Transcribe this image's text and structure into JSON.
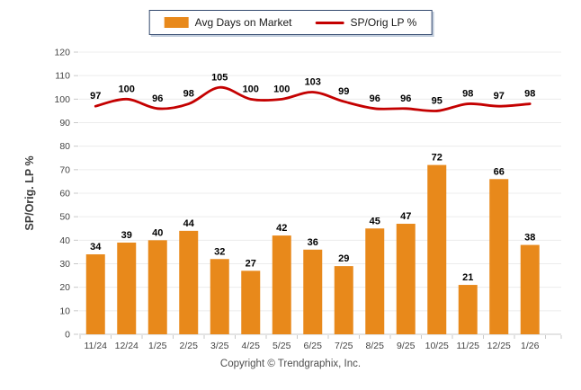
{
  "legend": {
    "border_color": "#33496E",
    "items": [
      {
        "label": "Avg Days on Market",
        "swatch": "bar-swatch-icon",
        "color": "#E8891B"
      },
      {
        "label": "SP/Orig LP %",
        "swatch": "line-swatch-icon",
        "color": "#C40000"
      }
    ]
  },
  "footer": "Copyright © Trendgraphix, Inc.",
  "chart_data": {
    "type": "combo",
    "categories": [
      "11/24",
      "12/24",
      "1/25",
      "2/25",
      "3/25",
      "4/25",
      "5/25",
      "6/25",
      "7/25",
      "8/25",
      "9/25",
      "10/25",
      "11/25",
      "12/25",
      "1/26"
    ],
    "series": [
      {
        "name": "Avg Days on Market",
        "type": "bar",
        "color": "#E8891B",
        "values": [
          34,
          39,
          40,
          44,
          32,
          27,
          42,
          36,
          29,
          45,
          47,
          72,
          21,
          66,
          38
        ]
      },
      {
        "name": "SP/Orig LP %",
        "type": "line",
        "color": "#C40000",
        "values": [
          97,
          100,
          96,
          98,
          105,
          100,
          100,
          103,
          99,
          96,
          96,
          95,
          98,
          97,
          98
        ]
      }
    ],
    "title": "",
    "xlabel": "",
    "ylabel": "SP/Orig. LP %",
    "ylim": [
      0,
      120
    ],
    "ytick_step": 10,
    "grid": true,
    "legend_position": "top",
    "colors": {
      "grid": "#ECECEC",
      "axis": "#C9C9C9",
      "tick_label": "#444444",
      "value_label": "#000000"
    }
  }
}
